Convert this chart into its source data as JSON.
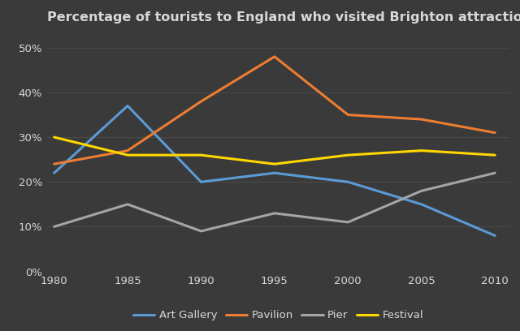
{
  "title": "Percentage of tourists to England who visited Brighton attractions",
  "years": [
    1980,
    1985,
    1990,
    1995,
    2000,
    2005,
    2010
  ],
  "series": {
    "Art Gallery": {
      "values": [
        22,
        37,
        20,
        22,
        20,
        15,
        8
      ],
      "color": "#5B9BD5",
      "linewidth": 2.2
    },
    "Pavilion": {
      "values": [
        24,
        27,
        38,
        48,
        35,
        34,
        31
      ],
      "color": "#ED7D31",
      "linewidth": 2.2
    },
    "Pier": {
      "values": [
        10,
        15,
        9,
        13,
        11,
        18,
        22
      ],
      "color": "#A5A5A5",
      "linewidth": 2.2
    },
    "Festival": {
      "values": [
        30,
        26,
        26,
        24,
        26,
        27,
        26
      ],
      "color": "#FFD700",
      "linewidth": 2.2
    }
  },
  "xlim": [
    1979.5,
    2011
  ],
  "ylim": [
    0,
    54
  ],
  "yticks": [
    0,
    10,
    20,
    30,
    40,
    50
  ],
  "xticks": [
    1980,
    1985,
    1990,
    1995,
    2000,
    2005,
    2010
  ],
  "background_color": "#3A3A3A",
  "grid_color": "#4A4A4A",
  "text_color": "#D8D8D8",
  "title_fontsize": 11.5,
  "tick_fontsize": 9.5,
  "legend_fontsize": 9.5
}
